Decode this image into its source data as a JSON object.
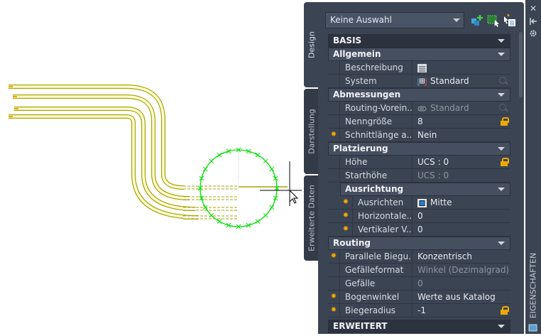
{
  "colors": {
    "pipe": "#a8a400",
    "pipe_fill": "#ffffd8",
    "grip": "#00e000",
    "panel": "#3b4453",
    "accent": "#f5a400"
  },
  "tabs": [
    {
      "label": "Design"
    },
    {
      "label": "Darstellung"
    },
    {
      "label": "Erweiterte Daten"
    }
  ],
  "selector": {
    "value": "Keine Auswahl"
  },
  "toolbar": [
    {
      "icon": "add-selection-icon"
    },
    {
      "icon": "quick-select-icon"
    },
    {
      "icon": "select-objects-icon"
    }
  ],
  "side": {
    "close": "✕",
    "title": "EIGENSCHAFTEN"
  },
  "rows": [
    {
      "type": "top",
      "label": "BASIS"
    },
    {
      "type": "sec",
      "label": "Allgemein"
    },
    {
      "label": "Beschreibung",
      "value": "",
      "icon": "description-icon"
    },
    {
      "label": "System",
      "value": "Standard",
      "icon": "system-icon",
      "btn": "mag"
    },
    {
      "type": "sec",
      "label": "Abmessungen"
    },
    {
      "label": "Routing-Vorein...",
      "value": "Standard",
      "icon": "routing-preset-icon",
      "dis": true,
      "btn": "mag"
    },
    {
      "label": "Nenngröße",
      "value": "8",
      "btn": "lock"
    },
    {
      "label": "Schnittlänge a...",
      "value": "Nein",
      "star": true
    },
    {
      "type": "sec",
      "label": "Platzierung"
    },
    {
      "label": "Höhe",
      "value": "UCS : 0",
      "btn": "lock"
    },
    {
      "label": "Starthöhe",
      "value": "UCS : 0",
      "dis": true
    },
    {
      "type": "sub",
      "label": "Ausrichtung"
    },
    {
      "label": "Ausrichten",
      "value": "Mitte",
      "icon": "justify-center-icon",
      "star": true,
      "indent": true
    },
    {
      "label": "Horizontale...",
      "value": "0",
      "star": true,
      "indent": true
    },
    {
      "label": "Vertikaler V...",
      "value": "0",
      "star": true,
      "indent": true
    },
    {
      "type": "sec",
      "label": "Routing"
    },
    {
      "label": "Parallele Biegu...",
      "value": "Konzentrisch",
      "star": true
    },
    {
      "label": "Gefälleformat",
      "value": "Winkel (Dezimalgrad)",
      "dis": true
    },
    {
      "label": "Gefälle",
      "value": "0",
      "dis": true
    },
    {
      "label": "Bogenwinkel",
      "value": "Werte aus Katalog",
      "star": true
    },
    {
      "label": "Biegeradius",
      "value": "-1",
      "star": true,
      "btn": "lock"
    },
    {
      "type": "top",
      "label": "ERWEITERT"
    }
  ]
}
